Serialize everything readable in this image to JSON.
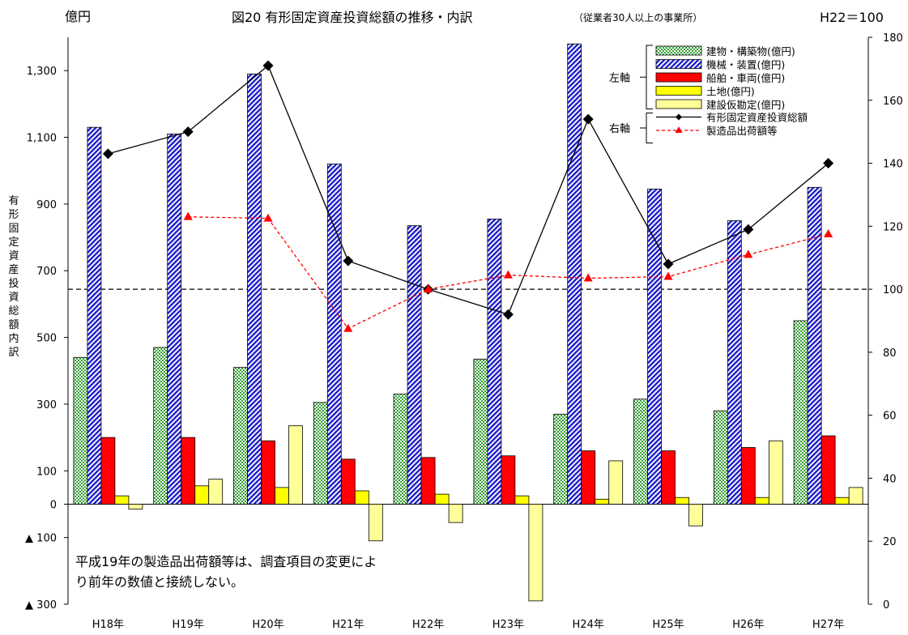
{
  "chart_data": {
    "type": "bar",
    "title": "図20 有形固定資産投資総額の推移・内訳",
    "subtitle": "（従業者30人以上の事業所）",
    "index_note": "H22＝100",
    "left_unit": "億円",
    "ylabel": "有形固定資産投資総額内訳",
    "categories": [
      "H18年",
      "H19年",
      "H20年",
      "H21年",
      "H22年",
      "H23年",
      "H24年",
      "H25年",
      "H26年",
      "H27年"
    ],
    "left_ylim": [
      -300,
      1400
    ],
    "left_ticks": [
      -300,
      -100,
      0,
      100,
      300,
      500,
      700,
      900,
      1100,
      1300
    ],
    "left_tick_labels": [
      "▲ 300",
      "▲ 100",
      "0",
      "100",
      "300",
      "500",
      "700",
      "900",
      "1,100",
      "1,300"
    ],
    "right_ylim": [
      0,
      180
    ],
    "right_ticks": [
      0,
      20,
      40,
      60,
      80,
      100,
      120,
      140,
      160,
      180
    ],
    "right_tick_labels": [
      "0",
      "20",
      "40",
      "60",
      "80",
      "100",
      "120",
      "140",
      "160",
      "180"
    ],
    "reference_line": 100,
    "series": [
      {
        "name": "建物・構築物(億円)",
        "axis": "left",
        "kind": "bar",
        "color": "#8fd18f",
        "values": [
          440,
          470,
          410,
          305,
          330,
          435,
          270,
          315,
          280,
          550
        ]
      },
      {
        "name": "機械・装置(億円)",
        "axis": "left",
        "kind": "bar",
        "color": "#3333cc",
        "values": [
          1130,
          1110,
          1290,
          1020,
          835,
          855,
          1380,
          945,
          850,
          950
        ]
      },
      {
        "name": "船舶・車両(億円)",
        "axis": "left",
        "kind": "bar",
        "color": "#ff0000",
        "values": [
          200,
          200,
          190,
          135,
          140,
          145,
          160,
          160,
          170,
          205
        ]
      },
      {
        "name": "土地(億円)",
        "axis": "left",
        "kind": "bar",
        "color": "#ffff00",
        "values": [
          25,
          55,
          50,
          40,
          30,
          25,
          15,
          20,
          20,
          20
        ]
      },
      {
        "name": "建設仮勘定(億円)",
        "axis": "left",
        "kind": "bar",
        "color": "#ffff99",
        "values": [
          -15,
          75,
          235,
          -110,
          -55,
          -290,
          130,
          -65,
          190,
          50
        ]
      },
      {
        "name": "有形固定資産投資総額",
        "axis": "right",
        "kind": "line",
        "color": "#000000",
        "values": [
          143,
          150,
          171,
          109,
          100,
          92,
          154,
          108,
          119,
          140
        ]
      },
      {
        "name": "製造品出荷額等",
        "axis": "right",
        "kind": "line",
        "color": "#ff0000",
        "values": [
          null,
          123,
          122.5,
          87.5,
          100,
          104.5,
          103.5,
          104,
          111,
          117.5
        ]
      }
    ],
    "legend": {
      "position": "top-right",
      "left_group_label": "左軸",
      "right_group_label": "右軸"
    },
    "annotation": "平成19年の製造品出荷額等は、調査項目の変更により前年の数値と接続しない。"
  }
}
